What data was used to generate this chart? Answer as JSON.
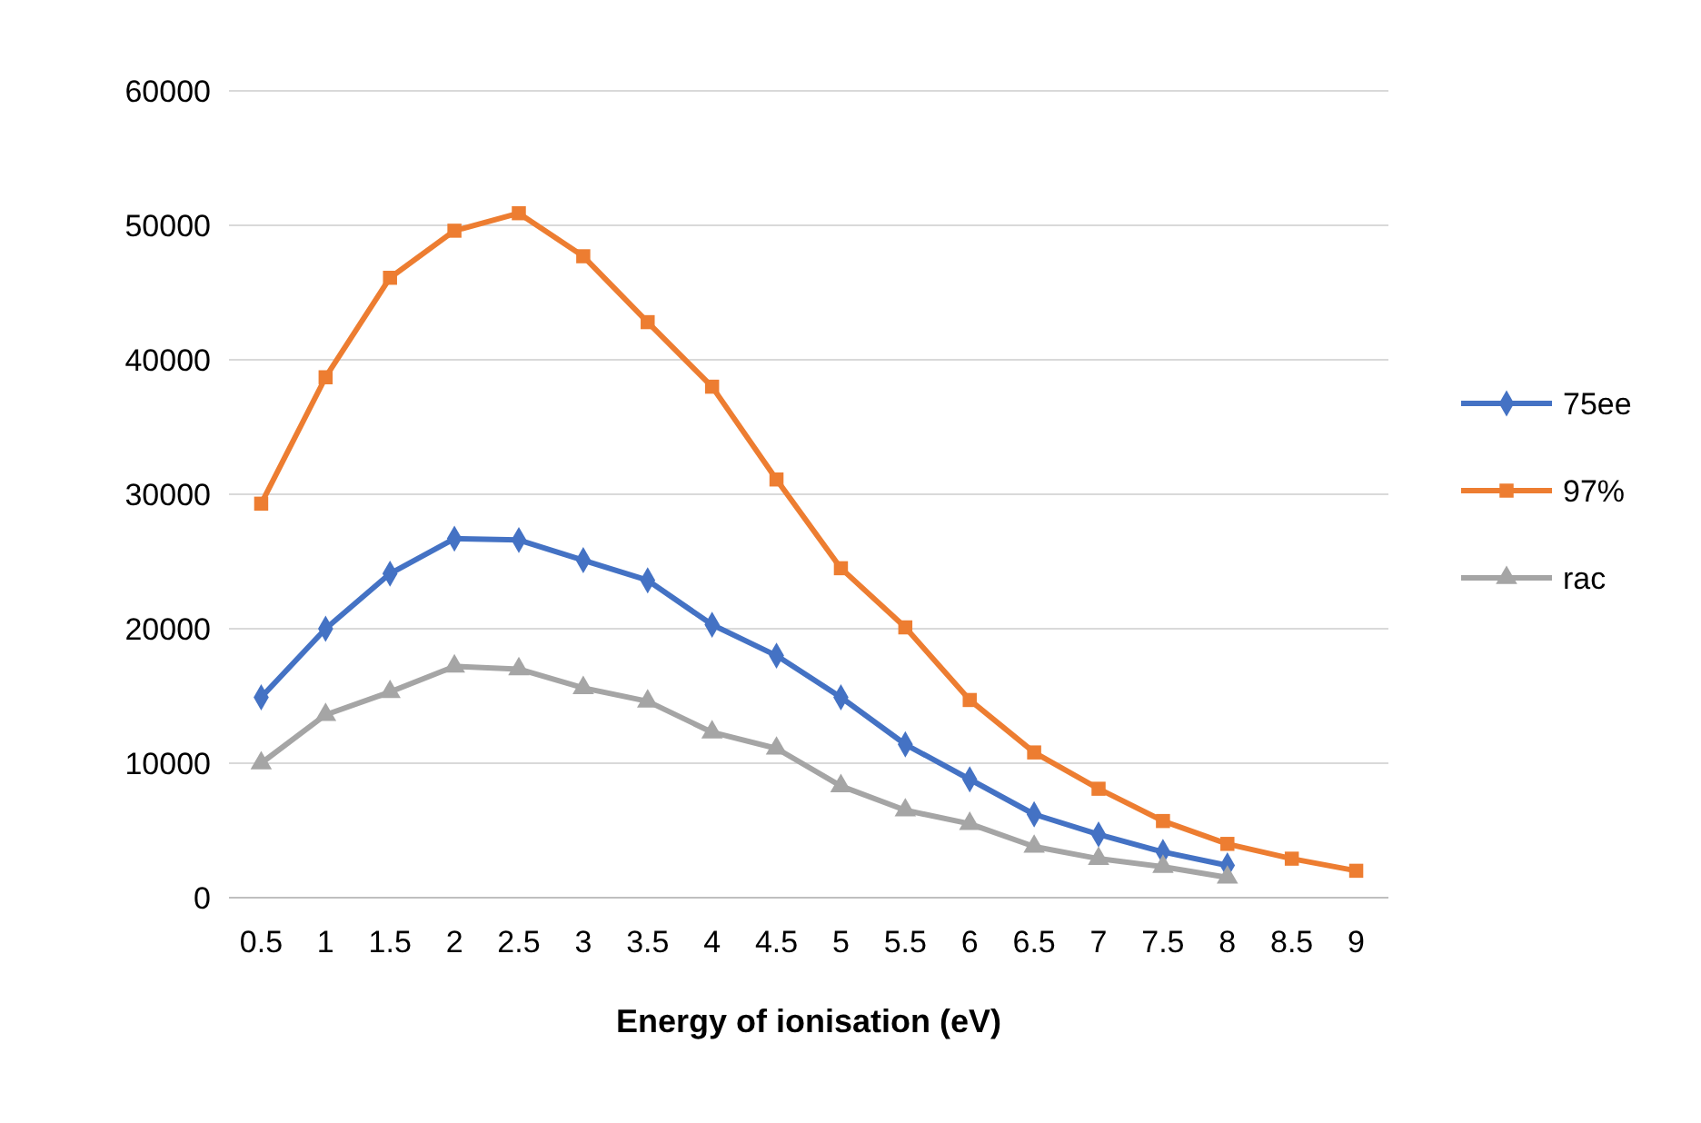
{
  "chart_data": {
    "type": "line",
    "xlabel": "Energy of ionisation (eV)",
    "categories": [
      "0.5",
      "1",
      "1.5",
      "2",
      "2.5",
      "3",
      "3.5",
      "4",
      "4.5",
      "5",
      "5.5",
      "6",
      "6.5",
      "7",
      "7.5",
      "8",
      "8.5",
      "9"
    ],
    "ylim": [
      0,
      60000
    ],
    "yticks": [
      0,
      10000,
      20000,
      30000,
      40000,
      50000,
      60000
    ],
    "grid": "y",
    "legend": "right",
    "series": [
      {
        "name": "75ee",
        "color": "#4472c4",
        "marker": "diamond",
        "values": [
          14900,
          20000,
          24100,
          26700,
          26600,
          25100,
          23600,
          20300,
          18000,
          14900,
          11400,
          8800,
          6200,
          4700,
          3400,
          2400,
          null,
          null
        ]
      },
      {
        "name": "97%",
        "color": "#ed7d31",
        "marker": "square",
        "values": [
          29300,
          38700,
          46100,
          49600,
          50900,
          47700,
          42800,
          38000,
          31100,
          24500,
          20100,
          14700,
          10800,
          8100,
          5700,
          4000,
          2900,
          2000
        ]
      },
      {
        "name": "rac",
        "color": "#a5a5a5",
        "marker": "triangle",
        "values": [
          10000,
          13600,
          15300,
          17200,
          17000,
          15600,
          14600,
          12300,
          11100,
          8300,
          6500,
          5500,
          3800,
          2900,
          2300,
          1500,
          null,
          null
        ]
      }
    ]
  }
}
